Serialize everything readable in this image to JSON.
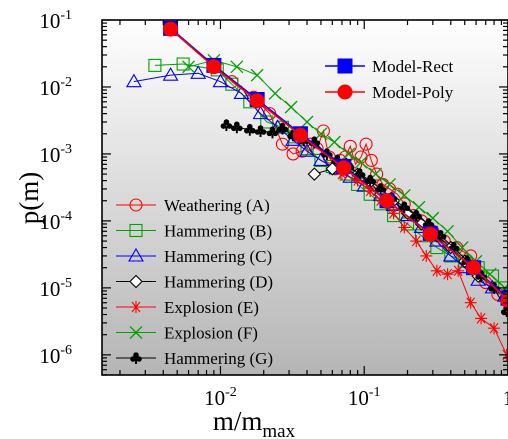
{
  "chart_data": {
    "type": "scatter",
    "xlabel": "m/m",
    "xlabel_sub": "max",
    "ylabel": "p(m)",
    "xscale": "log",
    "yscale": "log",
    "xlim": [
      0.0015,
      1.0
    ],
    "ylim": [
      5e-07,
      0.1
    ],
    "x_ticks": [
      {
        "value": 0.01,
        "base": "10",
        "exp": "-2"
      },
      {
        "value": 0.1,
        "base": "10",
        "exp": "-1"
      },
      {
        "value": 1,
        "base": "1",
        "exp": ""
      }
    ],
    "y_ticks": [
      {
        "value": 0.1,
        "base": "10",
        "exp": "-1"
      },
      {
        "value": 0.01,
        "base": "10",
        "exp": "-2"
      },
      {
        "value": 0.001,
        "base": "10",
        "exp": "-3"
      },
      {
        "value": 0.0001,
        "base": "10",
        "exp": "-4"
      },
      {
        "value": 1e-05,
        "base": "10",
        "exp": "-5"
      },
      {
        "value": 1e-06,
        "base": "10",
        "exp": "-6"
      }
    ],
    "background": "gradient gray",
    "legend_top": {
      "placement": "top-right",
      "entries": [
        "Model-Rect",
        "Model-Poly"
      ]
    },
    "legend_bottom": {
      "placement": "bottom-left",
      "entries": [
        "Weathering (A)",
        "Hammering (B)",
        "Hammering (C)",
        "Hammering (D)",
        "Explosion (E)",
        "Explosion (F)",
        "Hammering (G)"
      ]
    },
    "series": [
      {
        "name": "Model-Rect",
        "color": "#0000ff",
        "marker": "square-filled",
        "x": [
          0.0045,
          0.009,
          0.018,
          0.036,
          0.072,
          0.144,
          0.288,
          0.576,
          1.0
        ],
        "y": [
          0.075,
          0.021,
          0.0065,
          0.002,
          0.00065,
          0.0002,
          6.5e-05,
          2e-05,
          7e-06
        ]
      },
      {
        "name": "Model-Poly",
        "color": "#ff0000",
        "marker": "circle-filled",
        "x": [
          0.0045,
          0.009,
          0.018,
          0.036,
          0.072,
          0.144,
          0.288,
          0.576,
          1.0
        ],
        "y": [
          0.073,
          0.02,
          0.0062,
          0.0019,
          0.00062,
          0.0002,
          6.3e-05,
          2e-05,
          6.5e-06
        ]
      },
      {
        "name": "Weathering (A)",
        "color": "#ff0000",
        "marker": "circle-open",
        "x": [
          0.012,
          0.017,
          0.022,
          0.027,
          0.032,
          0.037,
          0.042,
          0.047,
          0.052,
          0.057,
          0.063,
          0.068,
          0.074,
          0.08,
          0.087,
          0.095,
          0.103,
          0.112,
          0.122,
          0.135,
          0.15,
          0.17,
          0.19,
          0.22,
          0.25,
          0.3,
          0.36,
          0.44,
          0.55,
          0.7,
          0.85
        ],
        "y": [
          0.012,
          0.007,
          0.004,
          0.0014,
          0.001,
          0.0011,
          0.0014,
          0.0012,
          0.0022,
          0.0009,
          0.0006,
          0.0008,
          0.0009,
          0.0013,
          0.0007,
          0.0009,
          0.0014,
          0.0008,
          0.0005,
          0.00035,
          0.0003,
          0.00025,
          0.00018,
          0.00012,
          0.0001,
          7e-05,
          5e-05,
          4e-05,
          3e-05,
          1.2e-05,
          8e-06
        ]
      },
      {
        "name": "Hammering (B)",
        "color": "#00a000",
        "marker": "square-open",
        "x": [
          0.0035,
          0.0055,
          0.0095,
          0.012,
          0.016,
          0.021,
          0.027,
          0.033,
          0.04,
          0.05,
          0.06,
          0.075,
          0.09,
          0.11,
          0.13,
          0.16,
          0.2,
          0.25,
          0.32,
          0.4,
          0.5,
          0.62,
          0.78,
          0.95
        ],
        "y": [
          0.021,
          0.022,
          0.018,
          0.011,
          0.006,
          0.003,
          0.0025,
          0.0018,
          0.0012,
          0.0008,
          0.00065,
          0.0005,
          0.00035,
          0.00025,
          0.00018,
          0.00012,
          9e-05,
          6e-05,
          4e-05,
          3e-05,
          2.5e-05,
          2e-05,
          1.5e-05,
          1e-05
        ]
      },
      {
        "name": "Hammering (C)",
        "color": "#0000ff",
        "marker": "triangle-open",
        "x": [
          0.0025,
          0.0045,
          0.007,
          0.01,
          0.014,
          0.019,
          0.025,
          0.032,
          0.04,
          0.05,
          0.064,
          0.08,
          0.1,
          0.13,
          0.16,
          0.2,
          0.25,
          0.32,
          0.4,
          0.5,
          0.62,
          0.78,
          0.95
        ],
        "y": [
          0.012,
          0.015,
          0.016,
          0.012,
          0.008,
          0.004,
          0.0025,
          0.0016,
          0.0011,
          0.0008,
          0.0006,
          0.00045,
          0.00033,
          0.00024,
          0.00017,
          0.00012,
          8e-05,
          5e-05,
          3e-05,
          2e-05,
          1.3e-05,
          1e-05,
          7.5e-06
        ]
      },
      {
        "name": "Hammering (D)",
        "color": "#000000",
        "marker": "diamond-open",
        "x": [
          0.045,
          0.06,
          0.075,
          0.09,
          0.11,
          0.13,
          0.16,
          0.2,
          0.25,
          0.32,
          0.4,
          0.5,
          0.62
        ],
        "y": [
          0.0005,
          0.0006,
          0.0007,
          0.0005,
          0.00038,
          0.00025,
          0.0002,
          0.00013,
          9e-05,
          6e-05,
          4e-05,
          2.5e-05,
          1.5e-05
        ]
      },
      {
        "name": "Explosion (E)",
        "color": "#ff0000",
        "marker": "star",
        "x": [
          0.07,
          0.09,
          0.11,
          0.13,
          0.16,
          0.19,
          0.23,
          0.27,
          0.32,
          0.38,
          0.45,
          0.55,
          0.65,
          0.8,
          0.98
        ],
        "y": [
          0.0005,
          0.0004,
          0.00028,
          0.0002,
          0.00013,
          8e-05,
          5e-05,
          3e-05,
          1.8e-05,
          1.6e-05,
          1.8e-05,
          6e-06,
          3.5e-06,
          2.5e-06,
          1e-06
        ]
      },
      {
        "name": "Explosion (F)",
        "color": "#00a000",
        "marker": "cross",
        "x": [
          0.006,
          0.009,
          0.013,
          0.018,
          0.024,
          0.031,
          0.04,
          0.05,
          0.062,
          0.078,
          0.095,
          0.12,
          0.15,
          0.19,
          0.24,
          0.3,
          0.38,
          0.48,
          0.6,
          0.75,
          0.95
        ],
        "y": [
          0.02,
          0.025,
          0.02,
          0.015,
          0.008,
          0.005,
          0.003,
          0.002,
          0.0015,
          0.001,
          0.00075,
          0.0005,
          0.00035,
          0.00024,
          0.00016,
          0.00011,
          7e-05,
          4e-05,
          2.5e-05,
          1.6e-05,
          1e-05
        ]
      },
      {
        "name": "Hammering (G)",
        "color": "#000000",
        "marker": "club",
        "x": [
          0.011,
          0.013,
          0.016,
          0.019,
          0.023,
          0.027,
          0.032,
          0.038,
          0.045,
          0.055,
          0.065,
          0.078,
          0.093,
          0.11,
          0.13,
          0.155,
          0.19,
          0.23,
          0.28,
          0.34,
          0.42,
          0.52,
          0.65,
          0.8,
          0.98
        ],
        "y": [
          0.0027,
          0.0025,
          0.0023,
          0.0022,
          0.0021,
          0.0024,
          0.0019,
          0.0016,
          0.0015,
          0.001,
          0.0008,
          0.00065,
          0.0005,
          0.0004,
          0.0003,
          0.00022,
          0.00016,
          0.00012,
          9e-05,
          6e-05,
          4e-05,
          2.5e-05,
          1.5e-05,
          1e-05,
          4.5e-06
        ]
      }
    ]
  }
}
